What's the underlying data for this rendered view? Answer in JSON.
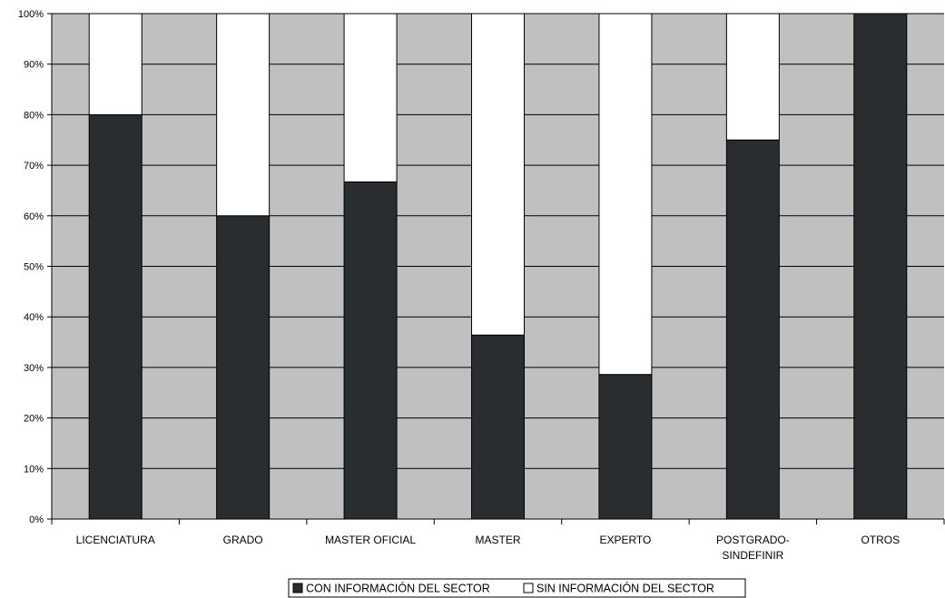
{
  "chart_data": {
    "type": "bar",
    "stacked": true,
    "title": "",
    "xlabel": "",
    "ylabel": "",
    "ylim": [
      0,
      100
    ],
    "y_ticks": [
      "0%",
      "10%",
      "20%",
      "30%",
      "40%",
      "50%",
      "60%",
      "70%",
      "80%",
      "90%",
      "100%"
    ],
    "grid": true,
    "legend_position": "bottom",
    "categories": [
      [
        "LICENCIATURA"
      ],
      [
        "GRADO"
      ],
      [
        "MASTER OFICIAL"
      ],
      [
        "MASTER"
      ],
      [
        "EXPERTO"
      ],
      [
        "POSTGRADO-",
        "SINDEFINIR"
      ],
      [
        "OTROS"
      ]
    ],
    "series": [
      {
        "name": "CON INFORMACIÓN DEL SECTOR",
        "values": [
          80,
          60,
          66.7,
          36.4,
          28.6,
          75,
          100
        ]
      },
      {
        "name": "SIN INFORMACIÓN DEL SECTOR",
        "values": [
          20,
          40,
          33.3,
          63.6,
          71.4,
          25,
          0
        ]
      }
    ],
    "colors": {
      "plot_background": "#c0c0c0",
      "con_informacion": "#2a2d2f",
      "sin_informacion": "#ffffff",
      "gridline": "#000000"
    }
  }
}
